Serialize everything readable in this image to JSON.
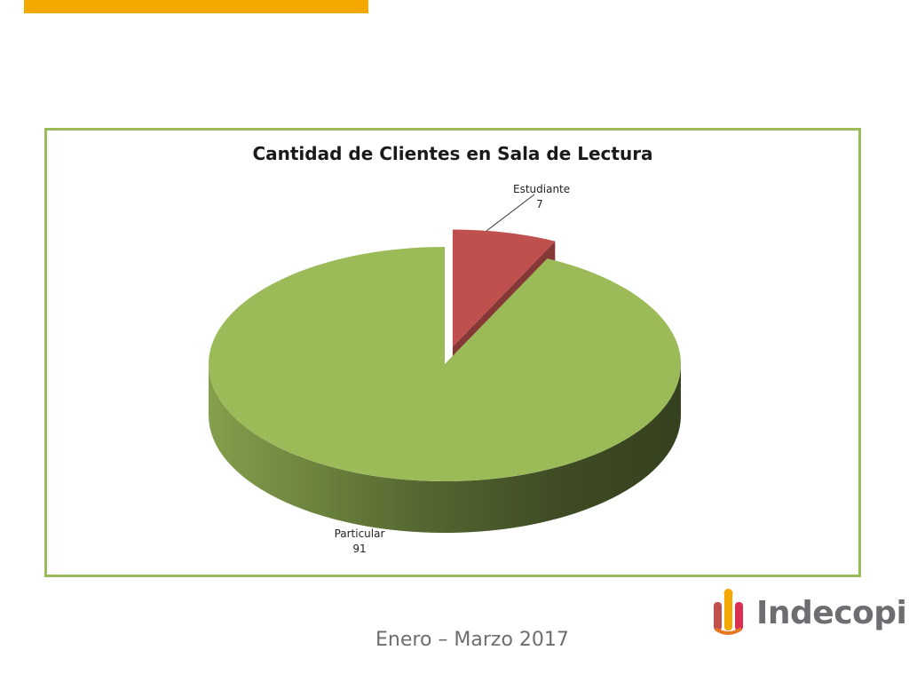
{
  "colors": {
    "accent_bar": "#f5a800",
    "frame": "#9bbb59",
    "particular": "#9bbb59",
    "estudiante": "#c0504d"
  },
  "chart_data": {
    "type": "pie",
    "style": "3d-exploded",
    "title": "Cantidad de Clientes en Sala de Lectura",
    "slices": [
      {
        "label": "Estudiante",
        "value": 7,
        "color": "#c0504d"
      },
      {
        "label": "Particular",
        "value": 91,
        "color": "#9bbb59"
      }
    ]
  },
  "logo": {
    "text": "Indecopi"
  },
  "footer": {
    "period": "Enero – Marzo 2017"
  }
}
